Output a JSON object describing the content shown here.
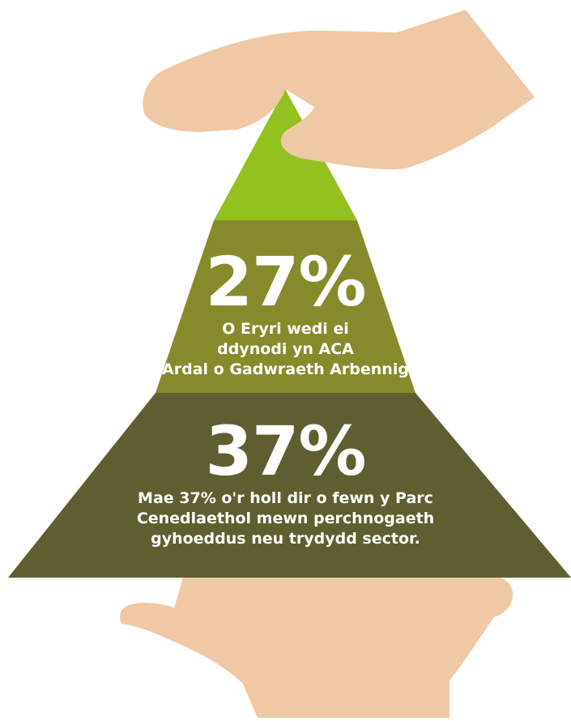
{
  "colors": {
    "hand": "#EFC8A5",
    "apex": "#93C11F",
    "middle": "#878A2B",
    "base": "#5E5E30",
    "text": "#FFFFFF"
  },
  "icons": [
    "top-hand-icon",
    "bottom-hand-icon"
  ],
  "pyramid": {
    "middle": {
      "stat": "27%",
      "lines": [
        "O Eryri wedi ei",
        "ddynodi yn ACA",
        "(Ardal o Gadwraeth Arbennig)"
      ]
    },
    "base": {
      "stat": "37%",
      "lines": [
        "Mae 37% o'r holl dir o fewn y Parc",
        "Cenedlaethol mewn perchnogaeth",
        "gyhoeddus neu trydydd sector."
      ]
    }
  }
}
